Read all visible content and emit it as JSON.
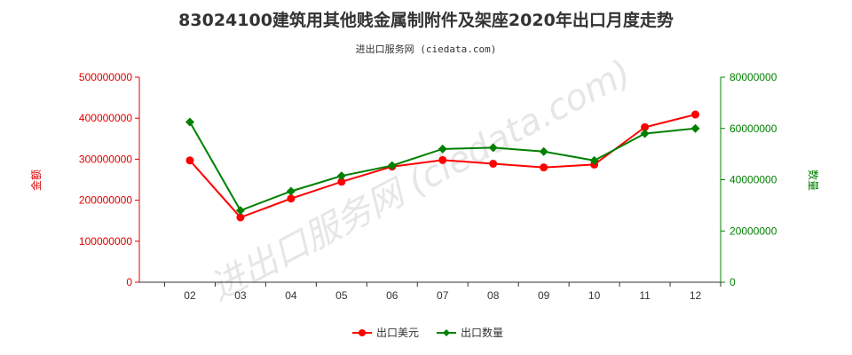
{
  "chart_data": {
    "type": "line",
    "title": "83024100建筑用其他贱金属制附件及架座2020年出口月度走势",
    "subtitle": "进出口服务网 (ciedata.com)",
    "watermark": "进出口服务网 (ciedata.com)",
    "categories": [
      "02",
      "03",
      "04",
      "05",
      "06",
      "07",
      "08",
      "09",
      "10",
      "11",
      "12"
    ],
    "left_axis": {
      "label": "金额",
      "ylim": [
        0,
        500000000
      ],
      "ticks": [
        "0",
        "100000000",
        "200000000",
        "300000000",
        "400000000",
        "500000000"
      ],
      "color": "#dd0000"
    },
    "right_axis": {
      "label": "数量",
      "ylim": [
        0,
        80000000
      ],
      "ticks": [
        "0",
        "20000000",
        "40000000",
        "60000000",
        "80000000"
      ],
      "color": "#008000"
    },
    "series": [
      {
        "name": "出口美元",
        "axis": "left",
        "color": "#ff0000",
        "marker": "circle",
        "values": [
          297000000,
          158000000,
          204000000,
          245000000,
          282000000,
          298000000,
          289000000,
          280000000,
          287000000,
          378000000,
          409000000
        ]
      },
      {
        "name": "出口数量",
        "axis": "right",
        "color": "#008000",
        "marker": "diamond",
        "values": [
          62500000,
          28000000,
          35500000,
          41500000,
          45500000,
          52000000,
          52500000,
          51000000,
          47500000,
          58000000,
          60000000
        ]
      }
    ],
    "grid": false,
    "legend_position": "bottom-center"
  }
}
